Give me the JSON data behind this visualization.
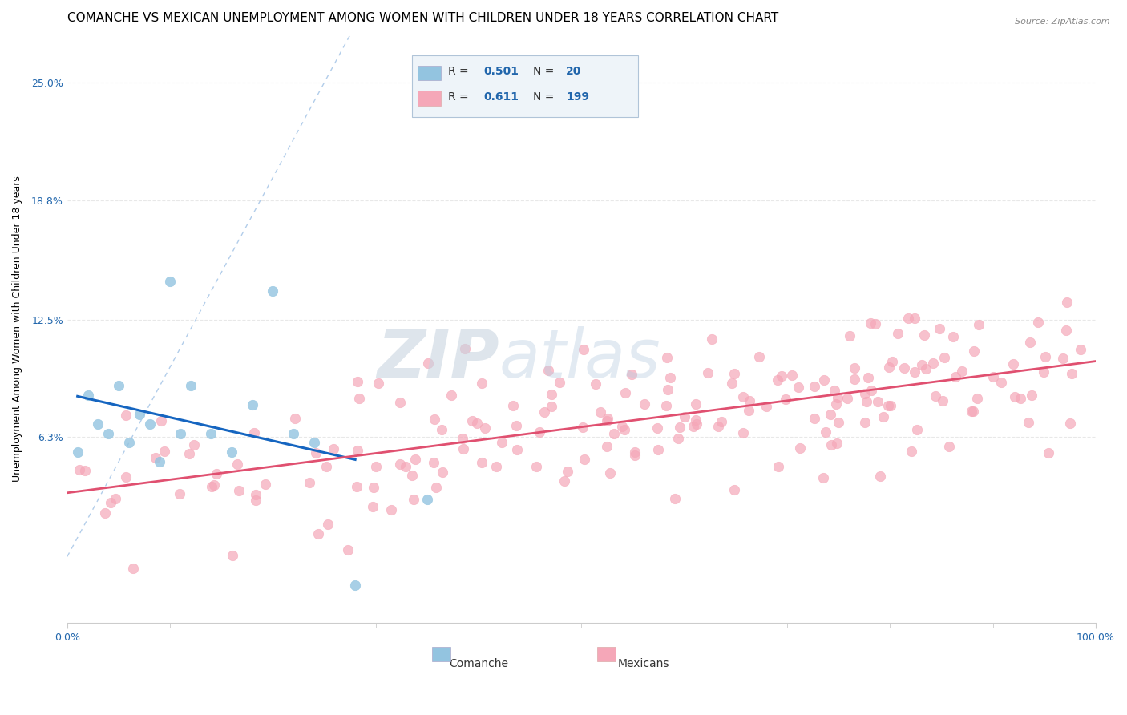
{
  "title": "COMANCHE VS MEXICAN UNEMPLOYMENT AMONG WOMEN WITH CHILDREN UNDER 18 YEARS CORRELATION CHART",
  "source": "Source: ZipAtlas.com",
  "ylabel": "Unemployment Among Women with Children Under 18 years",
  "xlim": [
    0.0,
    100.0
  ],
  "ylim": [
    -3.5,
    27.5
  ],
  "yticks": [
    6.3,
    12.5,
    18.8,
    25.0
  ],
  "xticks": [
    0.0,
    100.0
  ],
  "watermark_zip": "ZIP",
  "watermark_atlas": "atlas",
  "comanche_color": "#93c4e0",
  "mexican_color": "#f5a7b8",
  "comanche_trend_color": "#1565c0",
  "mexican_trend_color": "#e05070",
  "diagonal_color": "#aac8e8",
  "background_color": "#ffffff",
  "grid_color": "#e8e8e8",
  "legend_box_color": "#e8f0f8",
  "comanche_x": [
    1,
    2,
    3,
    4,
    5,
    6,
    7,
    8,
    9,
    10,
    11,
    12,
    14,
    16,
    18,
    20,
    22,
    24,
    28,
    35
  ],
  "comanche_y": [
    5.5,
    8.5,
    7.0,
    6.5,
    9.0,
    6.0,
    7.5,
    7.0,
    5.0,
    14.5,
    6.5,
    9.0,
    6.5,
    5.5,
    8.0,
    14.0,
    6.5,
    6.0,
    -1.5,
    3.0
  ],
  "title_fontsize": 11,
  "axis_label_fontsize": 9,
  "tick_fontsize": 9
}
